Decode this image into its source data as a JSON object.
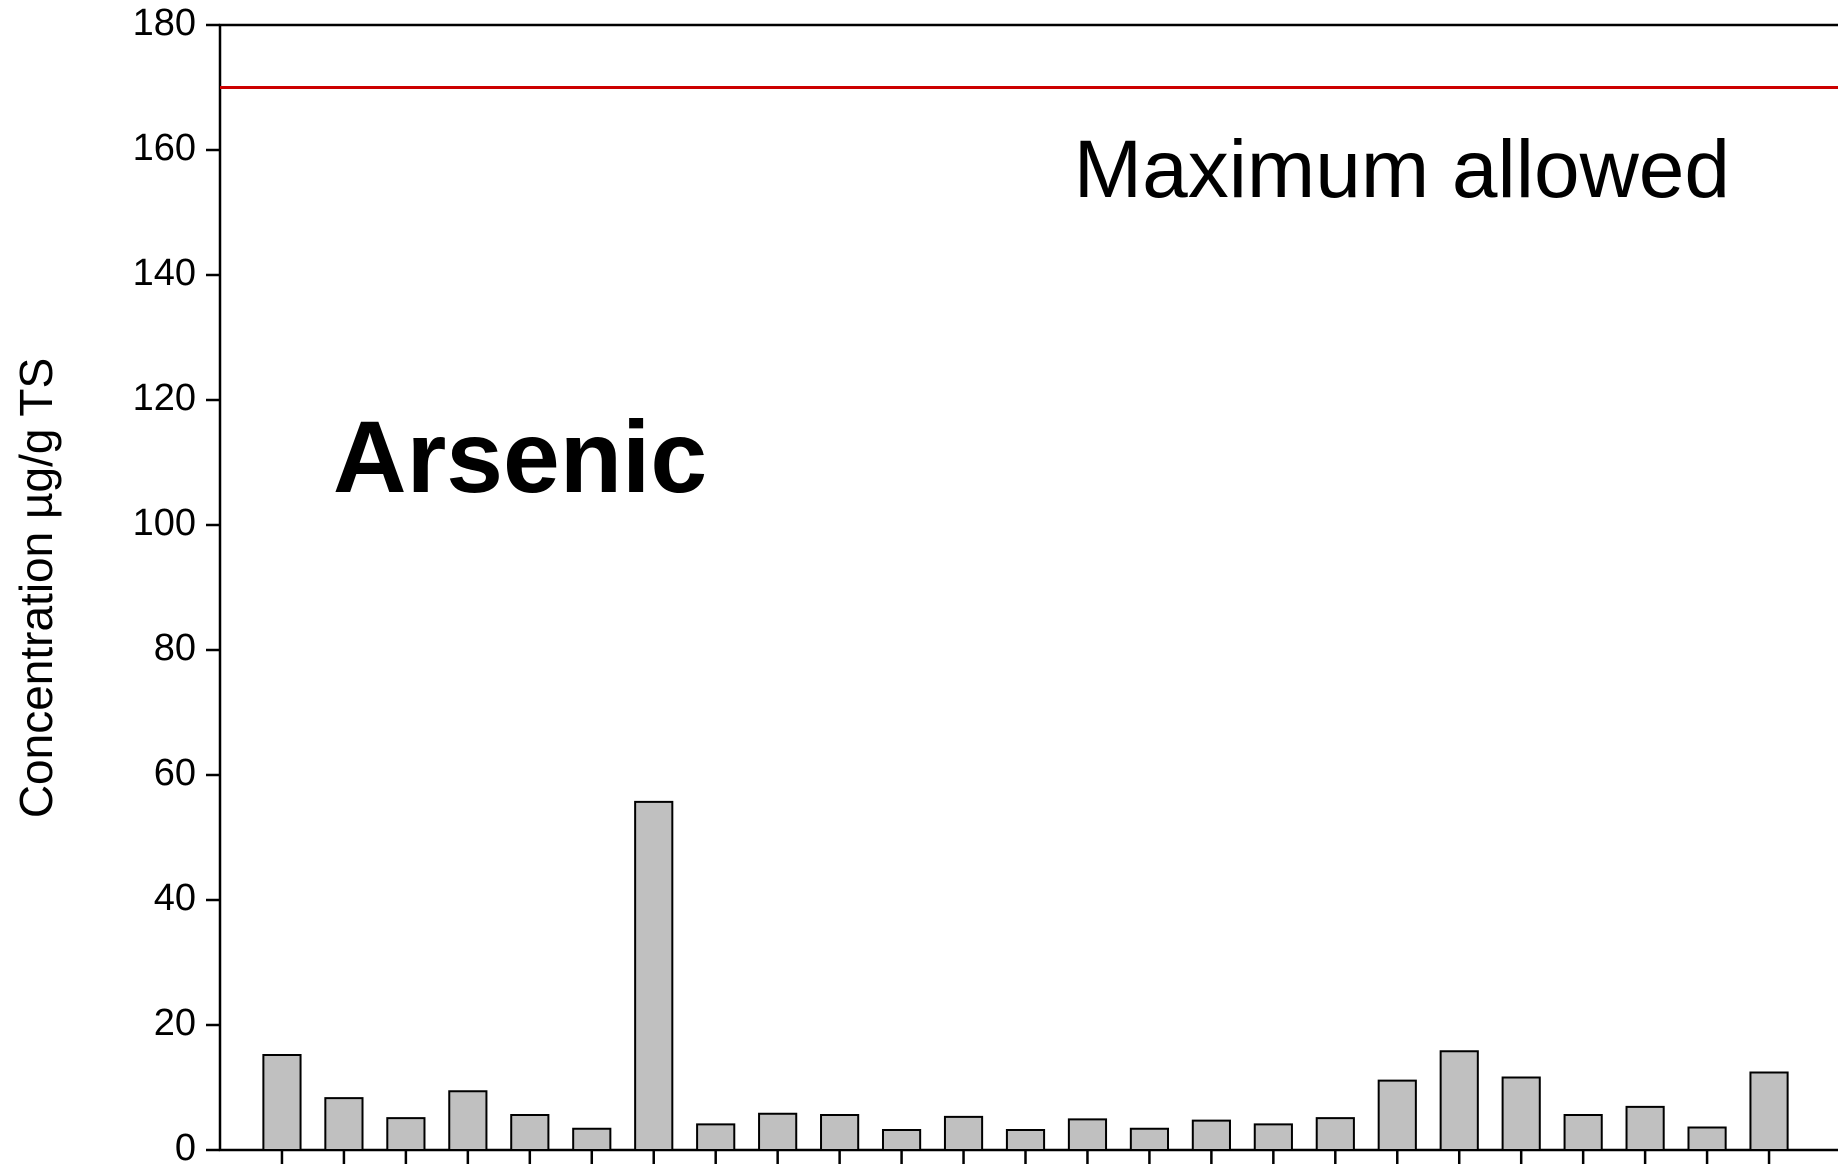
{
  "chart_data": {
    "type": "bar",
    "title": "Arsenic",
    "y_label": "Concentration µg/g TS",
    "categories": [
      null,
      null,
      null,
      null,
      null,
      null,
      null,
      null,
      null,
      null,
      null,
      null,
      null,
      null,
      null,
      null,
      null,
      null,
      null,
      null,
      null,
      null,
      null,
      null,
      null
    ],
    "values": [
      15.2,
      8.3,
      5.1,
      9.4,
      5.6,
      3.4,
      55.7,
      4.1,
      5.8,
      5.6,
      3.2,
      5.3,
      3.2,
      4.9,
      3.4,
      4.7,
      4.1,
      5.1,
      11.1,
      15.8,
      11.6,
      5.6,
      6.9,
      3.6,
      12.4
    ],
    "color": "#c0c0c0",
    "ylim": [
      0,
      180
    ],
    "yticks": [
      0,
      20,
      40,
      60,
      80,
      100,
      120,
      140,
      160,
      180
    ],
    "reference_line": {
      "value": 170,
      "label": "Maximum allowed",
      "color": "#cc0000"
    }
  }
}
